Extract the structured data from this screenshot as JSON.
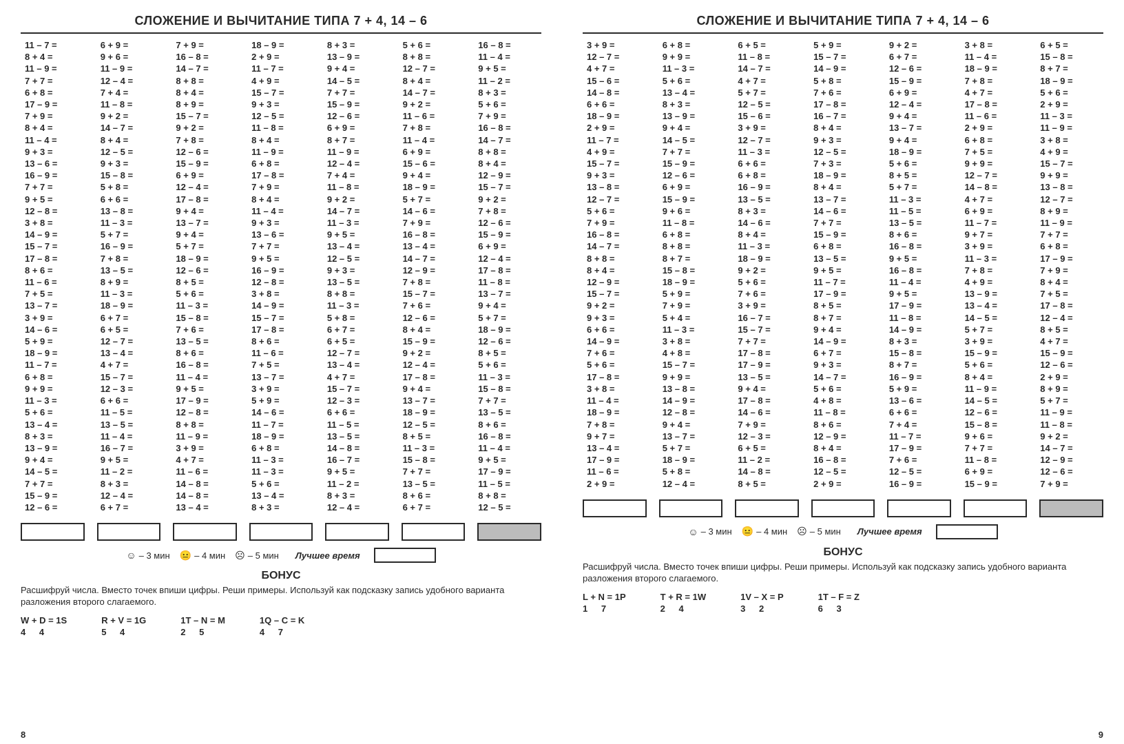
{
  "title": "СЛОЖЕНИЕ И ВЫЧИТАНИЕ ТИПА 7 + 4, 14 – 6",
  "timing": {
    "t3": "– 3 мин",
    "t4": "– 4 мин",
    "t5": "– 5 мин",
    "best": "Лучшее время"
  },
  "bonus": {
    "title": "БОНУС",
    "text": "Расшифруй числа. Вместо точек впиши цифры. Реши примеры. Используй как подсказку запись удобного варианта разложения второго слагаемого."
  },
  "left": {
    "pagenum": "8",
    "cols": [
      [
        "11 – 7 =",
        "8 + 4 =",
        "11 – 9 =",
        "7 + 7 =",
        "6 + 8 =",
        "17 – 9 =",
        "7 + 9 =",
        "8 + 4 =",
        "11 – 4 =",
        "9 + 3 =",
        "13 – 6 =",
        "16 – 9 =",
        "7 + 7 =",
        "9 + 5 =",
        "12 – 8 =",
        "3 + 8 =",
        "14 – 9 =",
        "15 – 7 =",
        "17 – 8 =",
        "8 + 6 =",
        "11 – 6 =",
        "7 + 5 =",
        "13 – 7 =",
        "3 + 9 =",
        "14 – 6 =",
        "5 + 9 =",
        "18 – 9 =",
        "11 – 7 =",
        "6 + 8 =",
        "9 + 9 =",
        "11 – 3 =",
        "5 + 6 =",
        "13 – 4 =",
        "8 + 3 =",
        "13 – 9 =",
        "9 + 4 =",
        "14 – 5 =",
        "7 + 7 =",
        "15 – 9 =",
        "12 – 6 ="
      ],
      [
        "6 + 9 =",
        "9 + 6 =",
        "11 – 9 =",
        "12 – 4 =",
        "7 + 4 =",
        "11 – 8 =",
        "9 + 2 =",
        "14 – 7 =",
        "8 + 4 =",
        "12 – 5 =",
        "9 + 3 =",
        "15 – 8 =",
        "5 + 8 =",
        "6 + 6 =",
        "13 – 8 =",
        "11 – 3 =",
        "5 + 7 =",
        "16 – 9 =",
        "7 + 8 =",
        "13 – 5 =",
        "8 + 9 =",
        "11 – 3 =",
        "18 – 9 =",
        "6 + 7 =",
        "6 + 5 =",
        "12 – 7 =",
        "13 – 4 =",
        "4 + 7 =",
        "15 – 7 =",
        "12 – 3 =",
        "6 + 6 =",
        "11 – 5 =",
        "13 – 5 =",
        "11 – 4 =",
        "16 – 7 =",
        "9 + 5 =",
        "11 – 2 =",
        "8 + 3 =",
        "12 – 4 =",
        "6 + 7 ="
      ],
      [
        "7 + 9 =",
        "16 – 8 =",
        "14 – 7 =",
        "8 + 8 =",
        "8 + 4 =",
        "8 + 9 =",
        "15 – 7 =",
        "9 + 2 =",
        "7 + 8 =",
        "12 – 6 =",
        "15 – 9 =",
        "6 + 9 =",
        "12 – 4 =",
        "17 – 8 =",
        "9 + 4 =",
        "13 – 7 =",
        "9 + 4 =",
        "5 + 7 =",
        "18 – 9 =",
        "12 – 6 =",
        "8 + 5 =",
        "5 + 6 =",
        "11 – 3 =",
        "15 – 8 =",
        "7 + 6 =",
        "13 – 5 =",
        "8 + 6 =",
        "16 – 8 =",
        "11 – 4 =",
        "9 + 5 =",
        "17 – 9 =",
        "12 – 8 =",
        "8 + 8 =",
        "11 – 9 =",
        "3 + 9 =",
        "4 + 7 =",
        "11 – 6 =",
        "14 – 8 =",
        "14 – 8 =",
        "13 – 4 ="
      ],
      [
        "18 – 9 =",
        "2 + 9 =",
        "11 – 7 =",
        "4 + 9 =",
        "15 – 7 =",
        "9 + 3 =",
        "12 – 5 =",
        "11 – 8 =",
        "8 + 4 =",
        "11 – 9 =",
        "6 + 8 =",
        "17 – 8 =",
        "7 + 9 =",
        "8 + 4 =",
        "11 – 4 =",
        "9 + 3 =",
        "13 – 6 =",
        "7 + 7 =",
        "9 + 5 =",
        "16 – 9 =",
        "12 – 8 =",
        "3 + 8 =",
        "14 – 9 =",
        "15 – 7 =",
        "17 – 8 =",
        "8 + 6 =",
        "11 – 6 =",
        "7 + 5 =",
        "13 – 7 =",
        "3 + 9 =",
        "5 + 9 =",
        "14 – 6 =",
        "11 – 7 =",
        "18 – 9 =",
        "6 + 8 =",
        "11 – 3 =",
        "11 – 3 =",
        "5 + 6 =",
        "13 – 4 =",
        "8 + 3 ="
      ],
      [
        "8 + 3 =",
        "13 – 9 =",
        "9 + 4 =",
        "14 – 5 =",
        "7 + 7 =",
        "15 – 9 =",
        "12 – 6 =",
        "6 + 9 =",
        "8 + 7 =",
        "11 – 9 =",
        "12 – 4 =",
        "7 + 4 =",
        "11 – 8 =",
        "9 + 2 =",
        "14 – 7 =",
        "11 – 3 =",
        "9 + 5 =",
        "13 – 4 =",
        "12 – 5 =",
        "9 + 3 =",
        "13 – 5 =",
        "8 + 8 =",
        "11 – 3 =",
        "5 + 8 =",
        "6 + 7 =",
        "6 + 5 =",
        "12 – 7 =",
        "13 – 4 =",
        "4 + 7 =",
        "15 – 7 =",
        "12 – 3 =",
        "6 + 6 =",
        "11 – 5 =",
        "13 – 5 =",
        "14 – 8 =",
        "16 – 7 =",
        "9 + 5 =",
        "11 – 2 =",
        "8 + 3 =",
        "12 – 4 ="
      ],
      [
        "5 + 6 =",
        "8 + 8 =",
        "12 – 7 =",
        "8 + 4 =",
        "14 – 7 =",
        "9 + 2 =",
        "11 – 6 =",
        "7 + 8 =",
        "11 – 4 =",
        "6 + 9 =",
        "15 – 6 =",
        "9 + 4 =",
        "18 – 9 =",
        "5 + 7 =",
        "14 – 6 =",
        "7 + 9 =",
        "16 – 8 =",
        "13 – 4 =",
        "14 – 7 =",
        "12 – 9 =",
        "7 + 8 =",
        "15 – 7 =",
        "7 + 6 =",
        "12 – 6 =",
        "8 + 4 =",
        "15 – 9 =",
        "9 + 2 =",
        "12 – 4 =",
        "17 – 8 =",
        "9 + 4 =",
        "13 – 7 =",
        "18 – 9 =",
        "12 – 5 =",
        "8 + 5 =",
        "11 – 3 =",
        "15 – 8 =",
        "7 + 7 =",
        "13 – 5 =",
        "8 + 6 =",
        "6 + 7 ="
      ],
      [
        "16 – 8 =",
        "11 – 4 =",
        "9 + 5 =",
        "11 – 2 =",
        "8 + 3 =",
        "5 + 6 =",
        "7 + 9 =",
        "16 – 8 =",
        "14 – 7 =",
        "8 + 8 =",
        "8 + 4 =",
        "12 – 9 =",
        "15 – 7 =",
        "9 + 2 =",
        "7 + 8 =",
        "12 – 6 =",
        "15 – 9 =",
        "6 + 9 =",
        "12 – 4 =",
        "17 – 8 =",
        "11 – 8 =",
        "13 – 7 =",
        "9 + 4 =",
        "5 + 7 =",
        "18 – 9 =",
        "12 – 6 =",
        "8 + 5 =",
        "5 + 6 =",
        "11 – 3 =",
        "15 – 8 =",
        "7 + 7 =",
        "13 – 5 =",
        "8 + 6 =",
        "16 – 8 =",
        "11 – 4 =",
        "9 + 5 =",
        "17 – 9 =",
        "11 – 5 =",
        "8 + 8 =",
        "12 – 5 ="
      ]
    ],
    "bonus_items": [
      {
        "eq": "W + D = 1S",
        "hint": "4  4"
      },
      {
        "eq": "R + V = 1G",
        "hint": "5  4"
      },
      {
        "eq": "1T – N = M",
        "hint": "2  5"
      },
      {
        "eq": "1Q – C = K",
        "hint": "4  7"
      }
    ]
  },
  "right": {
    "pagenum": "9",
    "cols": [
      [
        "3 + 9 =",
        "12 – 7 =",
        "4 + 7 =",
        "15 – 6 =",
        "14 – 8 =",
        "6 + 6 =",
        "18 – 9 =",
        "2 + 9 =",
        "11 – 7 =",
        "4 + 9 =",
        "15 – 7 =",
        "9 + 3 =",
        "13 – 8 =",
        "12 – 7 =",
        "5 + 6 =",
        "7 + 9 =",
        "16 – 8 =",
        "14 – 7 =",
        "8 + 8 =",
        "8 + 4 =",
        "12 – 9 =",
        "15 – 7 =",
        "9 + 2 =",
        "9 + 3 =",
        "6 + 6 =",
        "14 – 9 =",
        "7 + 6 =",
        "5 + 6 =",
        "17 – 8 =",
        "3 + 8 =",
        "11 – 4 =",
        "18 – 9 =",
        "7 + 8 =",
        "9 + 7 =",
        "13 – 4 =",
        "17 – 9 =",
        "11 – 6 =",
        "2 + 9 ="
      ],
      [
        "6 + 8 =",
        "9 + 9 =",
        "11 – 3 =",
        "5 + 6 =",
        "13 – 4 =",
        "8 + 3 =",
        "13 – 9 =",
        "9 + 4 =",
        "14 – 5 =",
        "7 + 7 =",
        "15 – 9 =",
        "12 – 6 =",
        "6 + 9 =",
        "15 – 9 =",
        "9 + 6 =",
        "11 – 8 =",
        "6 + 8 =",
        "8 + 8 =",
        "8 + 7 =",
        "15 – 8 =",
        "18 – 9 =",
        "5 + 9 =",
        "7 + 9 =",
        "5 + 4 =",
        "11 – 3 =",
        "3 + 8 =",
        "4 + 8 =",
        "15 – 7 =",
        "9 + 9 =",
        "13 – 8 =",
        "14 – 9 =",
        "12 – 8 =",
        "9 + 4 =",
        "13 – 7 =",
        "5 + 7 =",
        "18 – 9 =",
        "5 + 8 =",
        "12 – 4 ="
      ],
      [
        "6 + 5 =",
        "11 – 8 =",
        "14 – 7 =",
        "4 + 7 =",
        "5 + 7 =",
        "12 – 5 =",
        "15 – 6 =",
        "3 + 9 =",
        "12 – 7 =",
        "11 – 3 =",
        "6 + 6 =",
        "6 + 8 =",
        "16 – 9 =",
        "13 – 5 =",
        "8 + 3 =",
        "14 – 6 =",
        "8 + 4 =",
        "11 – 3 =",
        "18 – 9 =",
        "9 + 2 =",
        "5 + 6 =",
        "7 + 6 =",
        "3 + 9 =",
        "16 – 7 =",
        "15 – 7 =",
        "7 + 7 =",
        "17 – 8 =",
        "17 – 9 =",
        "13 – 5 =",
        "9 + 4 =",
        "17 – 8 =",
        "14 – 6 =",
        "7 + 9 =",
        "12 – 3 =",
        "6 + 5 =",
        "11 – 2 =",
        "14 – 8 =",
        "8 + 5 ="
      ],
      [
        "5 + 9 =",
        "15 – 7 =",
        "14 – 9 =",
        "5 + 8 =",
        "7 + 6 =",
        "17 – 8 =",
        "16 – 7 =",
        "8 + 4 =",
        "9 + 3 =",
        "12 – 5 =",
        "7 + 3 =",
        "18 – 9 =",
        "8 + 4 =",
        "13 – 7 =",
        "14 – 6 =",
        "7 + 7 =",
        "15 – 9 =",
        "6 + 8 =",
        "13 – 5 =",
        "9 + 5 =",
        "11 – 7 =",
        "17 – 9 =",
        "8 + 5 =",
        "8 + 7 =",
        "9 + 4 =",
        "14 – 9 =",
        "6 + 7 =",
        "9 + 3 =",
        "14 – 7 =",
        "5 + 6 =",
        "4 + 8 =",
        "11 – 8 =",
        "8 + 6 =",
        "12 – 9 =",
        "8 + 4 =",
        "16 – 8 =",
        "12 – 5 =",
        "2 + 9 ="
      ],
      [
        "9 + 2 =",
        "6 + 7 =",
        "12 – 6 =",
        "15 – 9 =",
        "6 + 9 =",
        "12 – 4 =",
        "9 + 4 =",
        "13 – 7 =",
        "9 + 4 =",
        "18 – 9 =",
        "5 + 6 =",
        "8 + 5 =",
        "5 + 7 =",
        "11 – 3 =",
        "11 – 5 =",
        "13 – 5 =",
        "8 + 6 =",
        "16 – 8 =",
        "9 + 5 =",
        "16 – 8 =",
        "11 – 4 =",
        "9 + 5 =",
        "17 – 9 =",
        "11 – 8 =",
        "14 – 9 =",
        "8 + 3 =",
        "15 – 8 =",
        "8 + 7 =",
        "16 – 9 =",
        "5 + 9 =",
        "13 – 6 =",
        "6 + 6 =",
        "7 + 4 =",
        "11 – 7 =",
        "17 – 9 =",
        "7 + 6 =",
        "12 – 5 =",
        "16 – 9 ="
      ],
      [
        "3 + 8 =",
        "11 – 4 =",
        "18 – 9 =",
        "7 + 8 =",
        "4 + 7 =",
        "17 – 8 =",
        "11 – 6 =",
        "2 + 9 =",
        "6 + 8 =",
        "7 + 5 =",
        "9 + 9 =",
        "12 – 7 =",
        "14 – 8 =",
        "4 + 7 =",
        "6 + 9 =",
        "11 – 7 =",
        "9 + 7 =",
        "3 + 9 =",
        "11 – 3 =",
        "7 + 8 =",
        "4 + 9 =",
        "13 – 9 =",
        "13 – 4 =",
        "14 – 5 =",
        "5 + 7 =",
        "3 + 9 =",
        "15 – 9 =",
        "5 + 6 =",
        "8 + 4 =",
        "11 – 9 =",
        "14 – 5 =",
        "12 – 6 =",
        "15 – 8 =",
        "9 + 6 =",
        "7 + 7 =",
        "11 – 8 =",
        "6 + 9 =",
        "15 – 9 ="
      ],
      [
        "6 + 5 =",
        "15 – 8 =",
        "8 + 7 =",
        "18 – 9 =",
        "5 + 6 =",
        "2 + 9 =",
        "11 – 3 =",
        "11 – 9 =",
        "3 + 8 =",
        "4 + 9 =",
        "15 – 7 =",
        "9 + 9 =",
        "13 – 8 =",
        "12 – 7 =",
        "8 + 9 =",
        "11 – 9 =",
        "7 + 7 =",
        "6 + 8 =",
        "17 – 9 =",
        "7 + 9 =",
        "8 + 4 =",
        "7 + 5 =",
        "17 – 8 =",
        "12 – 4 =",
        "8 + 5 =",
        "4 + 7 =",
        "15 – 9 =",
        "12 – 6 =",
        "2 + 9 =",
        "8 + 9 =",
        "5 + 7 =",
        "11 – 9 =",
        "11 – 8 =",
        "9 + 2 =",
        "14 – 7 =",
        "12 – 9 =",
        "12 – 6 =",
        "7 + 9 ="
      ]
    ],
    "bonus_items": [
      {
        "eq": "L + N = 1P",
        "hint": "1  7"
      },
      {
        "eq": "T + R = 1W",
        "hint": "2  4"
      },
      {
        "eq": "1V – X = P",
        "hint": "3  2"
      },
      {
        "eq": "1T – F = Z",
        "hint": "6  3"
      }
    ]
  }
}
